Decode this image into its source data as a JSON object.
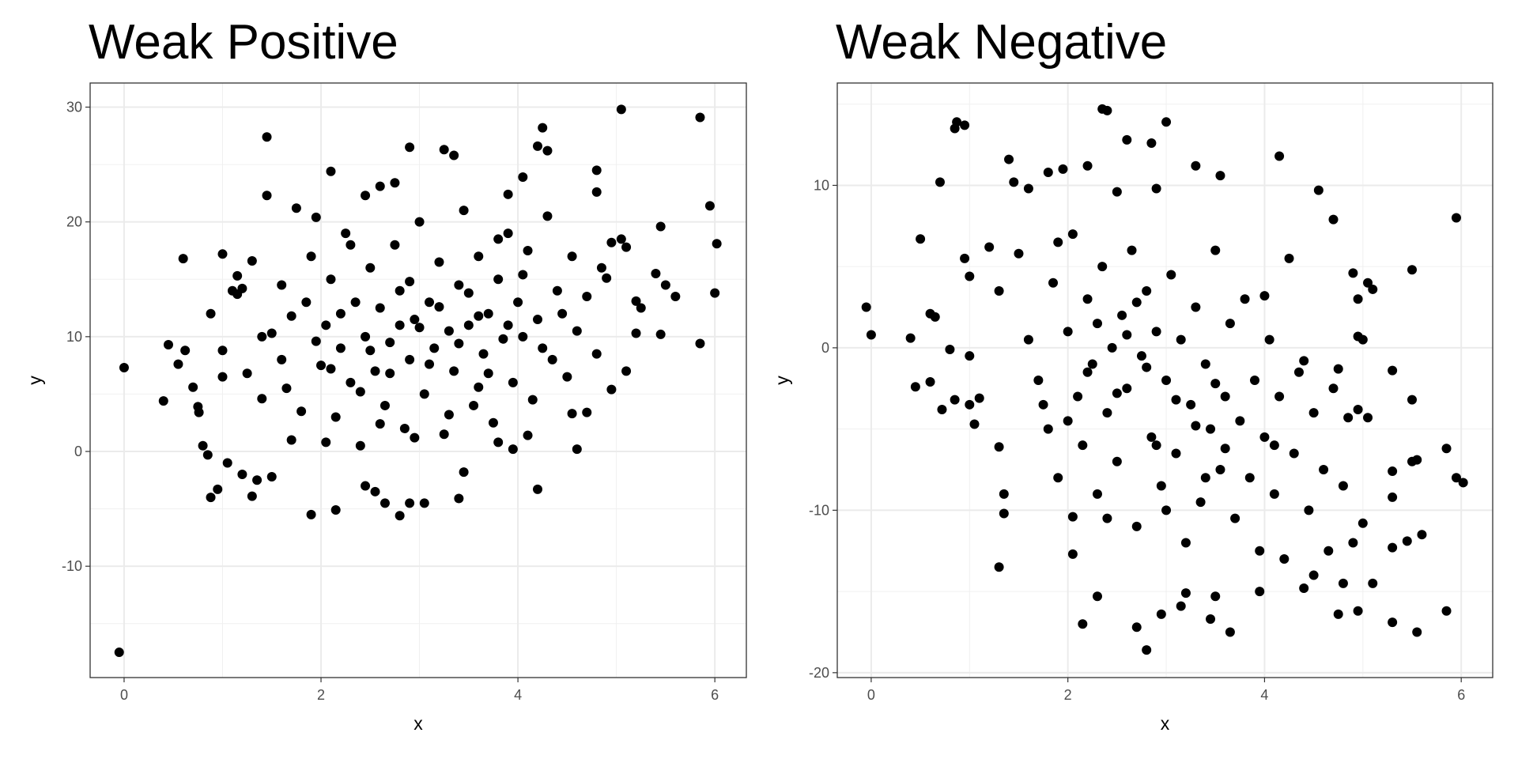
{
  "chart_data": [
    {
      "type": "scatter",
      "title": "Weak Positive",
      "xlabel": "x",
      "ylabel": "y",
      "xlim": [
        -0.345,
        6.32
      ],
      "ylim": [
        -19.7,
        32.1
      ],
      "xticks": [
        0,
        2,
        4,
        6
      ],
      "yticks": [
        -10,
        0,
        10,
        20,
        30
      ],
      "xtick_labels": [
        "0",
        "2",
        "4",
        "6"
      ],
      "ytick_labels": [
        "-10",
        "0",
        "10",
        "20",
        "30"
      ],
      "grid": true,
      "point_color": "#000000",
      "points": [
        [
          -0.05,
          -17.5
        ],
        [
          0,
          7.3
        ],
        [
          0.4,
          4.4
        ],
        [
          0.45,
          9.3
        ],
        [
          0.6,
          16.8
        ],
        [
          0.55,
          7.6
        ],
        [
          0.62,
          8.8
        ],
        [
          0.7,
          5.6
        ],
        [
          0.75,
          3.9
        ],
        [
          0.76,
          3.4
        ],
        [
          0.8,
          0.5
        ],
        [
          0.85,
          -0.3
        ],
        [
          0.88,
          -4
        ],
        [
          0.88,
          12
        ],
        [
          0.95,
          -3.3
        ],
        [
          1,
          17.2
        ],
        [
          1,
          8.8
        ],
        [
          1,
          6.5
        ],
        [
          1.05,
          -1
        ],
        [
          1.1,
          14
        ],
        [
          1.15,
          13.7
        ],
        [
          1.15,
          15.3
        ],
        [
          1.2,
          14.2
        ],
        [
          1.45,
          27.4
        ],
        [
          1.45,
          22.3
        ],
        [
          1.9,
          -5.5
        ],
        [
          2.15,
          -5.1
        ],
        [
          2.1,
          24.4
        ],
        [
          2.8,
          -5.6
        ],
        [
          2.9,
          26.5
        ],
        [
          3.25,
          26.3
        ],
        [
          3.35,
          25.8
        ],
        [
          3.4,
          -4.1
        ],
        [
          4.2,
          -3.3
        ],
        [
          4.2,
          26.6
        ],
        [
          4.25,
          28.2
        ],
        [
          4.3,
          26.2
        ],
        [
          5.05,
          29.8
        ],
        [
          5.85,
          29.1
        ],
        [
          5.85,
          9.4
        ],
        [
          5.95,
          21.4
        ],
        [
          6,
          13.8
        ],
        [
          6.02,
          18.1
        ],
        [
          5.6,
          13.5
        ],
        [
          5.5,
          14.5
        ],
        [
          5.45,
          10.2
        ],
        [
          5.4,
          15.5
        ],
        [
          5.45,
          19.6
        ],
        [
          5.25,
          12.5
        ],
        [
          5.2,
          13.1
        ],
        [
          5.2,
          10.3
        ],
        [
          5.1,
          7
        ],
        [
          4.95,
          5.4
        ],
        [
          4.6,
          0.2
        ],
        [
          4.55,
          3.3
        ],
        [
          4.7,
          3.4
        ],
        [
          3.95,
          0.2
        ],
        [
          4.1,
          1.4
        ],
        [
          1.3,
          -3.9
        ],
        [
          1.35,
          -2.5
        ],
        [
          1.2,
          -2
        ],
        [
          1.5,
          -2.2
        ],
        [
          2.45,
          -3
        ],
        [
          2.55,
          -3.5
        ],
        [
          2.65,
          -4.5
        ],
        [
          2.9,
          -4.5
        ],
        [
          3.05,
          -4.5
        ],
        [
          3.45,
          -1.8
        ],
        [
          3.8,
          0.8
        ],
        [
          4.8,
          24.5
        ],
        [
          4.8,
          22.6
        ],
        [
          4.05,
          23.9
        ],
        [
          3.9,
          22.4
        ],
        [
          2.75,
          23.4
        ],
        [
          2.6,
          23.1
        ],
        [
          2.45,
          22.3
        ],
        [
          1.75,
          21.2
        ],
        [
          1.95,
          20.4
        ],
        [
          4.95,
          18.2
        ],
        [
          5.05,
          18.5
        ],
        [
          5.1,
          17.8
        ],
        [
          4.9,
          15.1
        ],
        [
          1.3,
          16.6
        ],
        [
          1.4,
          10
        ],
        [
          1.5,
          10.3
        ],
        [
          1.6,
          8
        ],
        [
          1.65,
          5.5
        ],
        [
          1.7,
          1
        ],
        [
          1.8,
          3.5
        ],
        [
          1.85,
          13
        ],
        [
          1.9,
          17
        ],
        [
          2,
          7.5
        ],
        [
          2.05,
          11
        ],
        [
          2.1,
          15
        ],
        [
          2.15,
          3
        ],
        [
          2.2,
          9
        ],
        [
          2.25,
          19
        ],
        [
          2.3,
          6
        ],
        [
          2.35,
          13
        ],
        [
          2.4,
          0.5
        ],
        [
          2.45,
          10
        ],
        [
          2.5,
          16
        ],
        [
          2.55,
          7
        ],
        [
          2.6,
          12.5
        ],
        [
          2.65,
          4
        ],
        [
          2.7,
          9.5
        ],
        [
          2.75,
          18
        ],
        [
          2.8,
          14
        ],
        [
          2.85,
          2
        ],
        [
          2.9,
          8
        ],
        [
          2.95,
          11.5
        ],
        [
          3,
          20
        ],
        [
          3.05,
          5
        ],
        [
          3.1,
          13
        ],
        [
          3.15,
          9
        ],
        [
          3.2,
          16.5
        ],
        [
          3.25,
          1.5
        ],
        [
          3.3,
          10.5
        ],
        [
          3.35,
          7
        ],
        [
          3.4,
          14.5
        ],
        [
          3.45,
          21
        ],
        [
          3.5,
          11
        ],
        [
          3.55,
          4
        ],
        [
          3.6,
          17
        ],
        [
          3.65,
          8.5
        ],
        [
          3.7,
          12
        ],
        [
          3.75,
          2.5
        ],
        [
          3.8,
          15
        ],
        [
          3.85,
          9.8
        ],
        [
          3.9,
          19
        ],
        [
          3.95,
          6
        ],
        [
          4,
          13
        ],
        [
          4.05,
          10
        ],
        [
          4.1,
          17.5
        ],
        [
          4.15,
          4.5
        ],
        [
          4.2,
          11.5
        ],
        [
          4.3,
          20.5
        ],
        [
          4.35,
          8
        ],
        [
          4.4,
          14
        ],
        [
          4.5,
          6.5
        ],
        [
          4.55,
          17
        ],
        [
          4.6,
          10.5
        ],
        [
          4.7,
          13.5
        ],
        [
          4.8,
          8.5
        ],
        [
          4.85,
          16
        ],
        [
          2.2,
          12
        ],
        [
          2.5,
          8.8
        ],
        [
          2.7,
          6.8
        ],
        [
          3,
          10.8
        ],
        [
          3.2,
          12.6
        ],
        [
          3.4,
          9.4
        ],
        [
          3.6,
          11.8
        ],
        [
          2.9,
          14.8
        ],
        [
          3.1,
          7.6
        ],
        [
          2.4,
          5.2
        ],
        [
          3.7,
          6.8
        ],
        [
          1.95,
          9.6
        ],
        [
          2.6,
          2.4
        ],
        [
          3.3,
          3.2
        ],
        [
          3.9,
          11
        ],
        [
          4.25,
          9
        ],
        [
          2.1,
          7.2
        ],
        [
          2.8,
          11
        ],
        [
          3.5,
          13.8
        ],
        [
          1.7,
          11.8
        ],
        [
          1.6,
          14.5
        ],
        [
          2.3,
          18
        ],
        [
          3.8,
          18.5
        ],
        [
          4.45,
          12
        ],
        [
          1.25,
          6.8
        ],
        [
          1.4,
          4.6
        ],
        [
          2.05,
          0.8
        ],
        [
          3.6,
          5.6
        ],
        [
          2.95,
          1.2
        ],
        [
          4.05,
          15.4
        ]
      ]
    },
    {
      "type": "scatter",
      "title": "Weak Negative",
      "xlabel": "x",
      "ylabel": "y",
      "xlim": [
        -0.345,
        6.32
      ],
      "ylim": [
        -20.3,
        16.3
      ],
      "xticks": [
        0,
        2,
        4,
        6
      ],
      "yticks": [
        -20,
        -10,
        0,
        10
      ],
      "xtick_labels": [
        "0",
        "2",
        "4",
        "6"
      ],
      "ytick_labels": [
        "-20",
        "-10",
        "0",
        "10"
      ],
      "grid": true,
      "point_color": "#000000",
      "points": [
        [
          -0.05,
          2.5
        ],
        [
          0,
          0.8
        ],
        [
          0.4,
          0.6
        ],
        [
          0.45,
          -2.4
        ],
        [
          0.5,
          6.7
        ],
        [
          0.6,
          -2.1
        ],
        [
          0.6,
          2.1
        ],
        [
          0.65,
          1.9
        ],
        [
          0.7,
          10.2
        ],
        [
          0.72,
          -3.8
        ],
        [
          0.8,
          -0.1
        ],
        [
          0.85,
          -3.2
        ],
        [
          0.85,
          13.5
        ],
        [
          0.87,
          13.9
        ],
        [
          0.95,
          13.7
        ],
        [
          0.95,
          5.5
        ],
        [
          1,
          4.4
        ],
        [
          1,
          -0.5
        ],
        [
          1.05,
          -4.7
        ],
        [
          1,
          -3.5
        ],
        [
          1.1,
          -3.1
        ],
        [
          1.3,
          -6.1
        ],
        [
          1.3,
          -13.5
        ],
        [
          1.35,
          -9
        ],
        [
          1.35,
          -10.2
        ],
        [
          2.15,
          -17
        ],
        [
          2.3,
          -15.3
        ],
        [
          2.35,
          14.7
        ],
        [
          2.4,
          14.6
        ],
        [
          2.6,
          12.8
        ],
        [
          2.85,
          12.6
        ],
        [
          3,
          13.9
        ],
        [
          2.8,
          -18.6
        ],
        [
          2.95,
          -16.4
        ],
        [
          2.7,
          -17.2
        ],
        [
          3.15,
          -15.9
        ],
        [
          3.45,
          -16.7
        ],
        [
          3.65,
          -17.5
        ],
        [
          3.5,
          -15.3
        ],
        [
          4.15,
          11.8
        ],
        [
          4.55,
          9.7
        ],
        [
          4.7,
          7.9
        ],
        [
          5.95,
          8
        ],
        [
          5.5,
          4.8
        ],
        [
          5.5,
          -3.2
        ],
        [
          5.3,
          -1.4
        ],
        [
          5.85,
          -6.2
        ],
        [
          5.95,
          -8
        ],
        [
          6.02,
          -8.3
        ],
        [
          5.85,
          -16.2
        ],
        [
          5.55,
          -17.5
        ],
        [
          5.3,
          -16.9
        ],
        [
          5.6,
          -11.5
        ],
        [
          5.45,
          -11.9
        ],
        [
          5.3,
          -12.3
        ],
        [
          4.95,
          -16.2
        ],
        [
          4.75,
          -16.4
        ],
        [
          4.8,
          -14.5
        ],
        [
          5.1,
          -14.5
        ],
        [
          4.4,
          -14.8
        ],
        [
          4.5,
          -14
        ],
        [
          3.95,
          -15
        ],
        [
          3.2,
          -15.1
        ],
        [
          2.05,
          -12.7
        ],
        [
          2.05,
          -10.4
        ],
        [
          5.5,
          -7
        ],
        [
          5.55,
          -6.9
        ],
        [
          5.3,
          -7.6
        ],
        [
          5.3,
          -9.2
        ],
        [
          5,
          -10.8
        ],
        [
          5.05,
          -4.3
        ],
        [
          4.95,
          -3.8
        ],
        [
          5,
          0.5
        ],
        [
          4.95,
          0.7
        ],
        [
          4.95,
          3
        ],
        [
          5.05,
          4
        ],
        [
          5.1,
          3.6
        ],
        [
          4.9,
          4.6
        ],
        [
          4.75,
          -1.3
        ],
        [
          4.85,
          -4.3
        ],
        [
          1.4,
          11.6
        ],
        [
          1.45,
          10.2
        ],
        [
          1.6,
          9.8
        ],
        [
          1.8,
          10.8
        ],
        [
          1.95,
          11
        ],
        [
          2.2,
          11.2
        ],
        [
          2.5,
          9.6
        ],
        [
          2.9,
          9.8
        ],
        [
          3.3,
          11.2
        ],
        [
          3.55,
          10.6
        ],
        [
          1.2,
          6.2
        ],
        [
          1.3,
          3.5
        ],
        [
          1.5,
          5.8
        ],
        [
          1.6,
          0.5
        ],
        [
          1.7,
          -2
        ],
        [
          1.8,
          -5
        ],
        [
          1.85,
          4
        ],
        [
          1.9,
          -8
        ],
        [
          2,
          1
        ],
        [
          2.05,
          7
        ],
        [
          2.1,
          -3
        ],
        [
          2.15,
          -6
        ],
        [
          2.2,
          3
        ],
        [
          2.25,
          -1
        ],
        [
          2.3,
          -9
        ],
        [
          2.35,
          5
        ],
        [
          2.4,
          -4
        ],
        [
          2.45,
          0
        ],
        [
          2.5,
          -7
        ],
        [
          2.55,
          2
        ],
        [
          2.6,
          -2.5
        ],
        [
          2.65,
          6
        ],
        [
          2.7,
          -11
        ],
        [
          2.75,
          -0.5
        ],
        [
          2.8,
          3.5
        ],
        [
          2.85,
          -5.5
        ],
        [
          2.9,
          1
        ],
        [
          2.95,
          -8.5
        ],
        [
          3,
          -2
        ],
        [
          3.05,
          4.5
        ],
        [
          3.1,
          -6.5
        ],
        [
          3.15,
          0.5
        ],
        [
          3.2,
          -12
        ],
        [
          3.25,
          -3.5
        ],
        [
          3.3,
          2.5
        ],
        [
          3.35,
          -9.5
        ],
        [
          3.4,
          -1
        ],
        [
          3.45,
          -5
        ],
        [
          3.5,
          6
        ],
        [
          3.55,
          -7.5
        ],
        [
          3.6,
          -3
        ],
        [
          3.65,
          1.5
        ],
        [
          3.7,
          -10.5
        ],
        [
          3.75,
          -4.5
        ],
        [
          3.8,
          3
        ],
        [
          3.85,
          -8
        ],
        [
          3.9,
          -2
        ],
        [
          3.95,
          -12.5
        ],
        [
          4,
          -5.5
        ],
        [
          4.05,
          0.5
        ],
        [
          4.1,
          -9
        ],
        [
          4.15,
          -3
        ],
        [
          4.2,
          -13
        ],
        [
          4.25,
          5.5
        ],
        [
          4.3,
          -6.5
        ],
        [
          4.35,
          -1.5
        ],
        [
          4.45,
          -10
        ],
        [
          4.5,
          -4
        ],
        [
          4.6,
          -7.5
        ],
        [
          4.65,
          -12.5
        ],
        [
          4.7,
          -2.5
        ],
        [
          4.8,
          -8.5
        ],
        [
          4.9,
          -12
        ],
        [
          2.2,
          -1.5
        ],
        [
          2.5,
          -2.8
        ],
        [
          2.8,
          -1.2
        ],
        [
          3.1,
          -3.2
        ],
        [
          2.6,
          0.8
        ],
        [
          3.3,
          -4.8
        ],
        [
          2.9,
          -6
        ],
        [
          3.5,
          -2.2
        ],
        [
          2.3,
          1.5
        ],
        [
          2.7,
          2.8
        ],
        [
          3.6,
          -6.2
        ],
        [
          2,
          -4.5
        ],
        [
          1.75,
          -3.5
        ],
        [
          3.4,
          -8
        ],
        [
          4.1,
          -6
        ],
        [
          2.4,
          -10.5
        ],
        [
          3,
          -10
        ],
        [
          1.9,
          6.5
        ],
        [
          4,
          3.2
        ],
        [
          4.4,
          -0.8
        ]
      ]
    }
  ]
}
